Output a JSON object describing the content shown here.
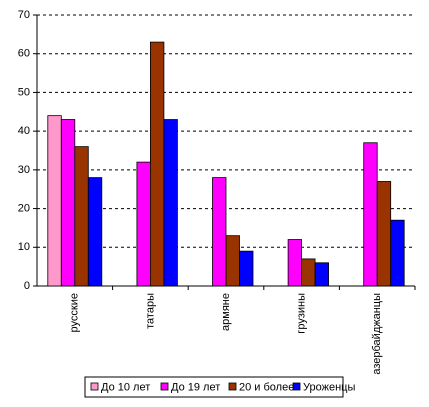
{
  "chart_data": {
    "type": "bar",
    "categories": [
      "русские",
      "татары",
      "армяне",
      "грузины",
      "азербайджанцы"
    ],
    "series": [
      {
        "name": "До 10 лет",
        "color": "#ff99cc",
        "values": [
          44,
          null,
          null,
          null,
          null
        ]
      },
      {
        "name": "До 19 лет",
        "color": "#ff00ff",
        "values": [
          43,
          32,
          28,
          12,
          37
        ]
      },
      {
        "name": "20 и более",
        "color": "#993300",
        "values": [
          36,
          63,
          13,
          7,
          27
        ]
      },
      {
        "name": "Уроженцы",
        "color": "#0000ff",
        "values": [
          28,
          43,
          9,
          6,
          17
        ]
      }
    ],
    "ylim": [
      0,
      70
    ],
    "yticks": [
      0,
      10,
      20,
      30,
      40,
      50,
      60,
      70
    ],
    "grid": true,
    "legend": "bottom"
  }
}
